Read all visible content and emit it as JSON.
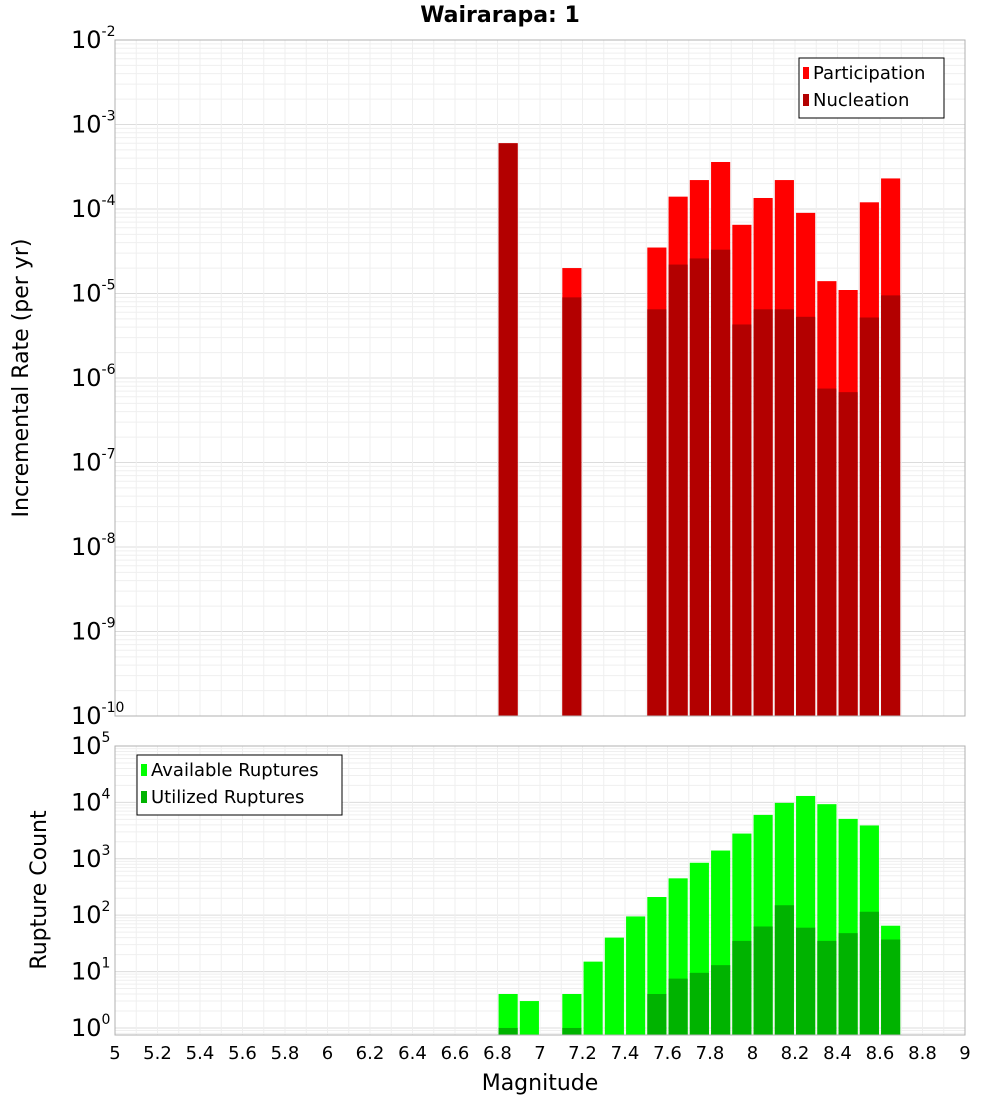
{
  "chart_data": [
    {
      "type": "bar",
      "title": "Wairarapa: 1",
      "xlabel": "",
      "ylabel": "Incremental Rate (per yr)",
      "yscale": "log",
      "ylim": [
        1e-10,
        0.01
      ],
      "xlim": [
        5,
        9
      ],
      "grid": true,
      "legend_position": "top-right",
      "bar_width": 0.09,
      "series": [
        {
          "name": "Participation",
          "color": "#ff0000",
          "points": [
            {
              "x": 6.85,
              "y": 0.0006
            },
            {
              "x": 7.15,
              "y": 2e-05
            },
            {
              "x": 7.55,
              "y": 3.5e-05
            },
            {
              "x": 7.65,
              "y": 0.00014
            },
            {
              "x": 7.75,
              "y": 0.00022
            },
            {
              "x": 7.85,
              "y": 0.00036
            },
            {
              "x": 7.95,
              "y": 6.5e-05
            },
            {
              "x": 8.05,
              "y": 0.000135
            },
            {
              "x": 8.15,
              "y": 0.00022
            },
            {
              "x": 8.25,
              "y": 9e-05
            },
            {
              "x": 8.35,
              "y": 1.4e-05
            },
            {
              "x": 8.45,
              "y": 1.1e-05
            },
            {
              "x": 8.55,
              "y": 0.00012
            },
            {
              "x": 8.65,
              "y": 0.00023
            }
          ]
        },
        {
          "name": "Nucleation",
          "color": "#b30000",
          "points": [
            {
              "x": 6.85,
              "y": 0.0006
            },
            {
              "x": 7.15,
              "y": 9e-06
            },
            {
              "x": 7.55,
              "y": 6.5e-06
            },
            {
              "x": 7.65,
              "y": 2.2e-05
            },
            {
              "x": 7.75,
              "y": 2.6e-05
            },
            {
              "x": 7.85,
              "y": 3.3e-05
            },
            {
              "x": 7.95,
              "y": 4.3e-06
            },
            {
              "x": 8.05,
              "y": 6.5e-06
            },
            {
              "x": 8.15,
              "y": 6.5e-06
            },
            {
              "x": 8.25,
              "y": 5.3e-06
            },
            {
              "x": 8.35,
              "y": 7.5e-07
            },
            {
              "x": 8.45,
              "y": 6.8e-07
            },
            {
              "x": 8.55,
              "y": 5.2e-06
            },
            {
              "x": 8.65,
              "y": 9.5e-06
            }
          ]
        }
      ],
      "yticks": [
        {
          "base": "10",
          "exp": "-2"
        },
        {
          "base": "10",
          "exp": "-3"
        },
        {
          "base": "10",
          "exp": "-4"
        },
        {
          "base": "10",
          "exp": "-5"
        },
        {
          "base": "10",
          "exp": "-6"
        },
        {
          "base": "10",
          "exp": "-7"
        },
        {
          "base": "10",
          "exp": "-8"
        },
        {
          "base": "10",
          "exp": "-9"
        },
        {
          "base": "10",
          "exp": "-10"
        }
      ]
    },
    {
      "type": "bar",
      "title": "",
      "xlabel": "Magnitude",
      "ylabel": "Rupture Count",
      "yscale": "log",
      "ylim": [
        0.75,
        100000
      ],
      "xlim": [
        5,
        9
      ],
      "grid": true,
      "legend_position": "top-left",
      "bar_width": 0.09,
      "series": [
        {
          "name": "Available Ruptures",
          "color": "#00ff00",
          "points": [
            {
              "x": 6.85,
              "y": 4
            },
            {
              "x": 6.95,
              "y": 3
            },
            {
              "x": 7.15,
              "y": 4
            },
            {
              "x": 7.25,
              "y": 15
            },
            {
              "x": 7.35,
              "y": 40
            },
            {
              "x": 7.45,
              "y": 95
            },
            {
              "x": 7.55,
              "y": 210
            },
            {
              "x": 7.65,
              "y": 450
            },
            {
              "x": 7.75,
              "y": 850
            },
            {
              "x": 7.85,
              "y": 1400
            },
            {
              "x": 7.95,
              "y": 2800
            },
            {
              "x": 8.05,
              "y": 6000
            },
            {
              "x": 8.15,
              "y": 9800
            },
            {
              "x": 8.25,
              "y": 13000
            },
            {
              "x": 8.35,
              "y": 9300
            },
            {
              "x": 8.45,
              "y": 5100
            },
            {
              "x": 8.55,
              "y": 3900
            },
            {
              "x": 8.65,
              "y": 65
            }
          ]
        },
        {
          "name": "Utilized Ruptures",
          "color": "#00b300",
          "points": [
            {
              "x": 6.85,
              "y": 1
            },
            {
              "x": 7.15,
              "y": 1
            },
            {
              "x": 7.55,
              "y": 4
            },
            {
              "x": 7.65,
              "y": 7.5
            },
            {
              "x": 7.75,
              "y": 9.5
            },
            {
              "x": 7.85,
              "y": 13
            },
            {
              "x": 7.95,
              "y": 35
            },
            {
              "x": 8.05,
              "y": 63
            },
            {
              "x": 8.15,
              "y": 150
            },
            {
              "x": 8.25,
              "y": 60
            },
            {
              "x": 8.35,
              "y": 35
            },
            {
              "x": 8.45,
              "y": 48
            },
            {
              "x": 8.55,
              "y": 115
            },
            {
              "x": 8.65,
              "y": 37
            }
          ]
        }
      ],
      "yticks": [
        {
          "base": "10",
          "exp": "5"
        },
        {
          "base": "10",
          "exp": "4"
        },
        {
          "base": "10",
          "exp": "3"
        },
        {
          "base": "10",
          "exp": "2"
        },
        {
          "base": "10",
          "exp": "1"
        },
        {
          "base": "10",
          "exp": "0"
        }
      ],
      "xticks": [
        "5",
        "5.2",
        "5.4",
        "5.6",
        "5.8",
        "6",
        "6.2",
        "6.4",
        "6.6",
        "6.8",
        "7",
        "7.2",
        "7.4",
        "7.6",
        "7.8",
        "8",
        "8.2",
        "8.4",
        "8.6",
        "8.8",
        "9"
      ]
    }
  ]
}
